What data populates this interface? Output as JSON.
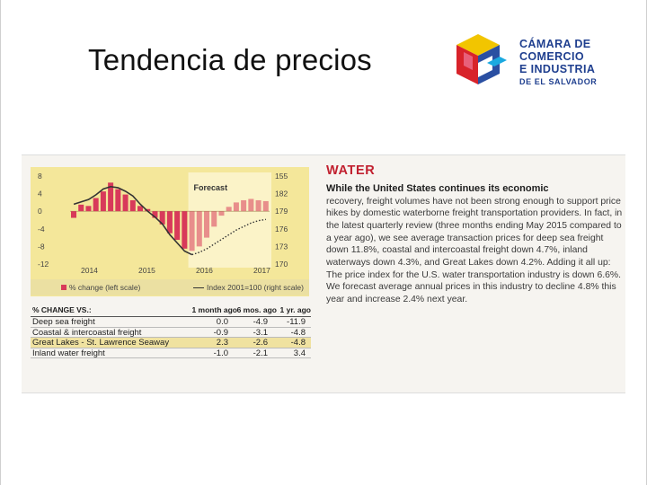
{
  "slide": {
    "title": "Tendencia de precios"
  },
  "logo": {
    "line1": "CÁMARA DE",
    "line2": "COMERCIO",
    "line3": "E INDUSTRIA",
    "line4": "DE EL SALVADOR",
    "colors": {
      "blue": "#2a4fa2",
      "yellow": "#f2c500",
      "red": "#d8232a",
      "cyan": "#1aa9e0"
    }
  },
  "chart_data": {
    "type": "bar",
    "title": "",
    "annotation": "Forecast",
    "left_axis": {
      "ticks": [
        "8",
        "4",
        "0",
        "-4",
        "-8",
        "-12"
      ],
      "range": [
        -12,
        8
      ]
    },
    "right_axis": {
      "ticks": [
        "155",
        "182",
        "179",
        "176",
        "173",
        "170"
      ],
      "range": [
        170,
        185
      ]
    },
    "x_labels": [
      "2014",
      "2015",
      "2016",
      "2017"
    ],
    "series": [
      {
        "name": "% change (left scale)",
        "kind": "bar",
        "color": "#d83a5a",
        "values": [
          -1.5,
          1.5,
          1.2,
          3.0,
          4.5,
          6.5,
          5.0,
          3.8,
          2.5,
          1.2,
          0.5,
          -1.5,
          -3.0,
          -5.0,
          -6.5,
          -8.5,
          -9.0,
          -8.0,
          -6.0,
          -3.5,
          -1.0,
          1.0,
          2.0,
          2.5,
          2.8,
          2.5,
          2.3
        ]
      },
      {
        "name": "Index 2001=100 (right scale)",
        "kind": "line",
        "color": "#333333",
        "values": [
          180.2,
          180.6,
          181.0,
          181.8,
          182.8,
          183.2,
          183.0,
          182.4,
          181.6,
          180.2,
          179.0,
          178.0,
          176.8,
          175.0,
          173.6,
          172.2,
          171.6,
          172.0,
          172.6,
          173.4,
          174.2,
          175.0,
          175.8,
          176.4,
          177.0,
          177.4,
          177.6
        ]
      }
    ],
    "forecast_start_index": 16,
    "legend": [
      "% change (left scale)",
      "Index 2001=100 (right scale)"
    ],
    "grid": false
  },
  "table": {
    "headers": [
      "% CHANGE VS.:",
      "1 month ago",
      "6 mos. ago",
      "1 yr. ago"
    ],
    "rows": [
      [
        "Deep sea freight",
        "0.0",
        "-4.9",
        "-11.9"
      ],
      [
        "Coastal & intercoastal freight",
        "-0.9",
        "-3.1",
        "-4.8"
      ],
      [
        "Great Lakes - St. Lawrence Seaway",
        "2.3",
        "-2.6",
        "-4.8"
      ],
      [
        "Inland water freight",
        "-1.0",
        "-2.1",
        "3.4"
      ]
    ]
  },
  "article": {
    "heading": "WATER",
    "lead": "While the United States continues its economic",
    "body": "recovery, freight volumes have not been strong enough to support price hikes by domestic waterborne freight transportation providers. In fact, in the latest quarterly review (three months ending May 2015 compared to a year ago), we see average transaction prices for deep sea freight down 11.8%, coastal and intercoastal freight down 4.7%, inland waterways down 4.3%, and Great Lakes down 4.2%. Adding it all up: The price index for the U.S. water transportation industry is down 6.6%. We forecast average annual prices in this industry to decline 4.8% this year and increase 2.4% next year."
  }
}
